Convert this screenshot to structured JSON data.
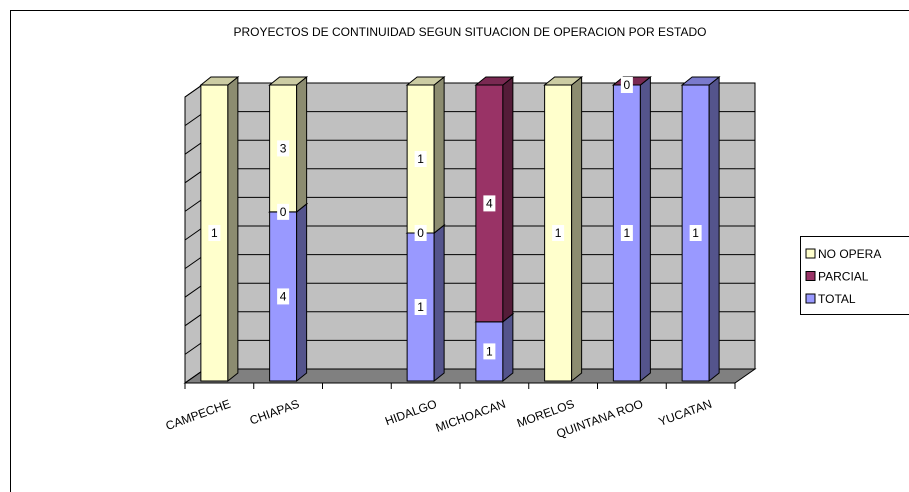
{
  "chart_data": {
    "type": "bar",
    "stacking": "percent",
    "title": "PROYECTOS DE CONTINUIDAD SEGUN SITUACION DE OPERACION POR ESTADO",
    "categories": [
      "CAMPECHE",
      "CHIAPAS",
      null,
      "HIDALGO",
      "MICHOACAN",
      "MORELOS",
      "QUINTANA ROO",
      "YUCATAN"
    ],
    "series": [
      {
        "name": "TOTAL",
        "color": "#9999ff",
        "values": [
          null,
          4,
          null,
          1,
          1,
          null,
          1,
          1
        ]
      },
      {
        "name": "PARCIAL",
        "color": "#993366",
        "values": [
          null,
          0,
          null,
          0,
          4,
          null,
          0,
          null
        ]
      },
      {
        "name": "NO OPERA",
        "color": "#ffffcc",
        "values": [
          1,
          3,
          null,
          1,
          null,
          1,
          null,
          null
        ]
      }
    ],
    "ylim": [
      0,
      100
    ],
    "yticks": [
      0,
      10,
      20,
      30,
      40,
      50,
      60,
      70,
      80,
      90,
      100
    ],
    "grid": true,
    "legend": "right"
  }
}
